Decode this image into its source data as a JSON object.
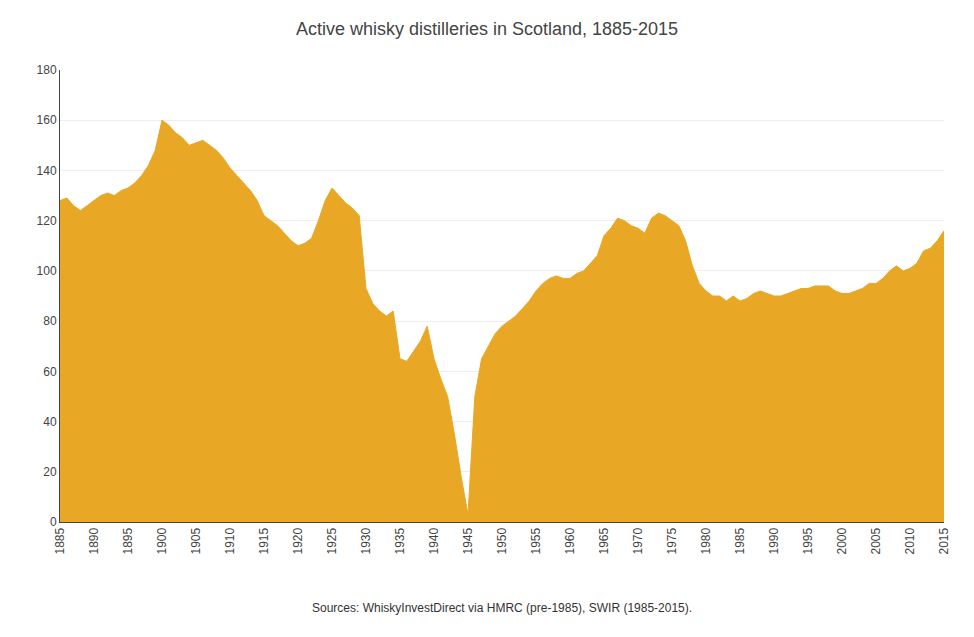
{
  "chart_data": {
    "type": "area",
    "title": "Active whisky distilleries in Scotland, 1885-2015",
    "annotations": [
      "Sources: WhiskyInvestDirect via HMRC (pre-1985), SWIR (1985-2015)."
    ],
    "color": "#E8A825",
    "x": [
      1885,
      1886,
      1887,
      1888,
      1889,
      1890,
      1891,
      1892,
      1893,
      1894,
      1895,
      1896,
      1897,
      1898,
      1899,
      1900,
      1901,
      1902,
      1903,
      1904,
      1905,
      1906,
      1907,
      1908,
      1909,
      1910,
      1911,
      1912,
      1913,
      1914,
      1915,
      1916,
      1917,
      1918,
      1919,
      1920,
      1921,
      1922,
      1923,
      1924,
      1925,
      1926,
      1927,
      1928,
      1929,
      1930,
      1931,
      1932,
      1933,
      1934,
      1935,
      1936,
      1937,
      1938,
      1939,
      1940,
      1941,
      1942,
      1943,
      1944,
      1945,
      1946,
      1947,
      1948,
      1949,
      1950,
      1951,
      1952,
      1953,
      1954,
      1955,
      1956,
      1957,
      1958,
      1959,
      1960,
      1961,
      1962,
      1963,
      1964,
      1965,
      1966,
      1967,
      1968,
      1969,
      1970,
      1971,
      1972,
      1973,
      1974,
      1975,
      1976,
      1977,
      1978,
      1979,
      1980,
      1981,
      1982,
      1983,
      1984,
      1985,
      1986,
      1987,
      1988,
      1989,
      1990,
      1991,
      1992,
      1993,
      1994,
      1995,
      1996,
      1997,
      1998,
      1999,
      2000,
      2001,
      2002,
      2003,
      2004,
      2005,
      2006,
      2007,
      2008,
      2009,
      2010,
      2011,
      2012,
      2013,
      2014,
      2015
    ],
    "values": [
      128,
      129,
      126,
      124,
      126,
      128,
      130,
      131,
      130,
      132,
      133,
      135,
      138,
      142,
      148,
      160,
      158,
      155,
      153,
      150,
      151,
      152,
      150,
      148,
      145,
      141,
      138,
      135,
      132,
      128,
      122,
      120,
      118,
      115,
      112,
      110,
      111,
      113,
      120,
      128,
      133,
      130,
      127,
      125,
      122,
      93,
      87,
      84,
      82,
      84,
      65,
      64,
      68,
      72,
      78,
      65,
      57,
      50,
      35,
      18,
      3,
      50,
      65,
      70,
      75,
      78,
      80,
      82,
      85,
      88,
      92,
      95,
      97,
      98,
      97,
      97,
      99,
      100,
      103,
      106,
      114,
      117,
      121,
      120,
      118,
      117,
      115,
      121,
      123,
      122,
      120,
      118,
      112,
      102,
      95,
      92,
      90,
      90,
      88,
      90,
      88,
      89,
      91,
      92,
      91,
      90,
      90,
      91,
      92,
      93,
      93,
      94,
      94,
      94,
      92,
      91,
      91,
      92,
      93,
      95,
      95,
      97,
      100,
      102,
      100,
      101,
      103,
      108,
      109,
      112,
      116
    ],
    "xlim": [
      1885,
      2015
    ],
    "xticks": [
      1885,
      1890,
      1895,
      1900,
      1905,
      1910,
      1915,
      1920,
      1925,
      1930,
      1935,
      1940,
      1945,
      1950,
      1955,
      1960,
      1965,
      1970,
      1975,
      1980,
      1985,
      1990,
      1995,
      2000,
      2005,
      2010,
      2015
    ],
    "ylim": [
      0,
      180
    ],
    "yticks": [
      0,
      20,
      40,
      60,
      80,
      100,
      120,
      140,
      160,
      180
    ],
    "grid": true
  }
}
